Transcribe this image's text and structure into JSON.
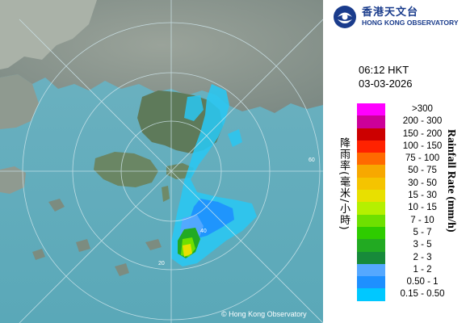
{
  "org": {
    "name_zh": "香港天文台",
    "name_en": "HONG KONG OBSERVATORY"
  },
  "timestamp": {
    "time": "06:12 HKT",
    "date": "03-03-2026"
  },
  "legend": {
    "title_zh": "降雨率(毫米/小時)",
    "title_en": "Rainfall Rate (mm/h)",
    "levels": [
      {
        "label": ">300",
        "color": "#ff00ff"
      },
      {
        "label": "200 - 300",
        "color": "#cc0099"
      },
      {
        "label": "150 - 200",
        "color": "#cc0000"
      },
      {
        "label": "100 - 150",
        "color": "#ff2200"
      },
      {
        "label": "75 - 100",
        "color": "#ff6a00"
      },
      {
        "label": "50 - 75",
        "color": "#f7a800"
      },
      {
        "label": "30 - 50",
        "color": "#f5c400"
      },
      {
        "label": "15 - 30",
        "color": "#e8e000"
      },
      {
        "label": "10 - 15",
        "color": "#b5f000"
      },
      {
        "label": "7 - 10",
        "color": "#6ee000"
      },
      {
        "label": "5 - 7",
        "color": "#2ecc00"
      },
      {
        "label": "3 - 5",
        "color": "#22aa22"
      },
      {
        "label": "2 - 3",
        "color": "#178a3a"
      },
      {
        "label": "1 - 2",
        "color": "#55a8ff"
      },
      {
        "label": "0.50 - 1",
        "color": "#1e90ff"
      },
      {
        "label": "0.15 - 0.50",
        "color": "#00c8ff"
      }
    ]
  },
  "map": {
    "range_ring_labels": [
      "20",
      "40",
      "60"
    ],
    "copyright": "© Hong Kong Observatory"
  }
}
